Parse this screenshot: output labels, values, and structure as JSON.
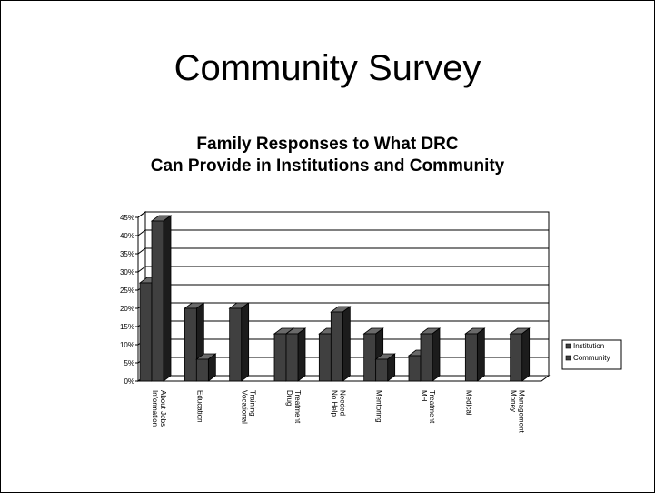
{
  "slide": {
    "title": "Community Survey"
  },
  "chart_data": {
    "type": "bar",
    "title_line1": "Family Responses to What DRC",
    "title_line2": "Can Provide in Institutions and Community",
    "categories": [
      [
        "Information",
        "About Jobs"
      ],
      [
        "Education"
      ],
      [
        "Vocational",
        "Training"
      ],
      [
        "Drug",
        "Treatment"
      ],
      [
        "No Help",
        "Needed"
      ],
      [
        "Mentoring"
      ],
      [
        "MH",
        "Treatment"
      ],
      [
        "Medical"
      ],
      [
        "Money",
        "Management"
      ]
    ],
    "series": [
      {
        "name": "Institution",
        "values": [
          27,
          20,
          20,
          13,
          13,
          13,
          7,
          0,
          0
        ]
      },
      {
        "name": "Community",
        "values": [
          44,
          6,
          0,
          13,
          19,
          6,
          13,
          13,
          13
        ]
      }
    ],
    "ylim": [
      0,
      45
    ],
    "y_ticks": [
      "0%",
      "5%",
      "10%",
      "15%",
      "20%",
      "25%",
      "30%",
      "35%",
      "40%",
      "45%"
    ],
    "grid": true,
    "legend_position": "right",
    "colors": {
      "bar_front": "#404040",
      "bar_side": "#1c1c1c",
      "bar_top": "#6a6a6a"
    }
  }
}
